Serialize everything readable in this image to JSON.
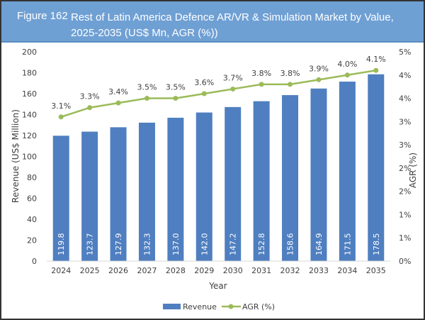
{
  "figure_label": "Figure 162",
  "chart_data": {
    "type": "bar+line",
    "title": "Rest of Latin America Defence AR/VR & Simulation Market by Value, 2025-2035 (US$ Mn, AGR (%))",
    "xlabel": "Year",
    "ylabel": "Revenue (US$ Million)",
    "y2label": "AGR (%)",
    "categories": [
      "2024",
      "2025",
      "2026",
      "2027",
      "2028",
      "2029",
      "2030",
      "2031",
      "2032",
      "2033",
      "2034",
      "2035"
    ],
    "ylim": [
      0,
      200
    ],
    "yticks": [
      "0",
      "20",
      "40",
      "60",
      "80",
      "100",
      "120",
      "140",
      "160",
      "180",
      "200"
    ],
    "y2lim": [
      0,
      4.5
    ],
    "y2ticks": [
      "0%",
      "1%",
      "1%",
      "2%",
      "2%",
      "3%",
      "3%",
      "4%",
      "4%",
      "5%"
    ],
    "series": [
      {
        "name": "Revenue",
        "type": "bar",
        "color": "#4f7fc0",
        "values": [
          119.8,
          123.7,
          127.9,
          132.3,
          137.0,
          142.0,
          147.2,
          152.8,
          158.6,
          164.9,
          171.5,
          178.5
        ],
        "labels": [
          "119.8",
          "123.7",
          "127.9",
          "132.3",
          "137.0",
          "142.0",
          "147.2",
          "152.8",
          "158.6",
          "164.9",
          "171.5",
          "178.5"
        ]
      },
      {
        "name": "AGR (%)",
        "type": "line",
        "axis": "right",
        "color": "#9bbb59",
        "values": [
          3.1,
          3.3,
          3.4,
          3.5,
          3.5,
          3.6,
          3.7,
          3.8,
          3.8,
          3.9,
          4.0,
          4.1
        ],
        "labels": [
          "3.1%",
          "3.3%",
          "3.4%",
          "3.5%",
          "3.5%",
          "3.6%",
          "3.7%",
          "3.8%",
          "3.8%",
          "3.9%",
          "4.0%",
          "4.1%"
        ]
      }
    ],
    "grid": false,
    "legend": "bottom"
  }
}
